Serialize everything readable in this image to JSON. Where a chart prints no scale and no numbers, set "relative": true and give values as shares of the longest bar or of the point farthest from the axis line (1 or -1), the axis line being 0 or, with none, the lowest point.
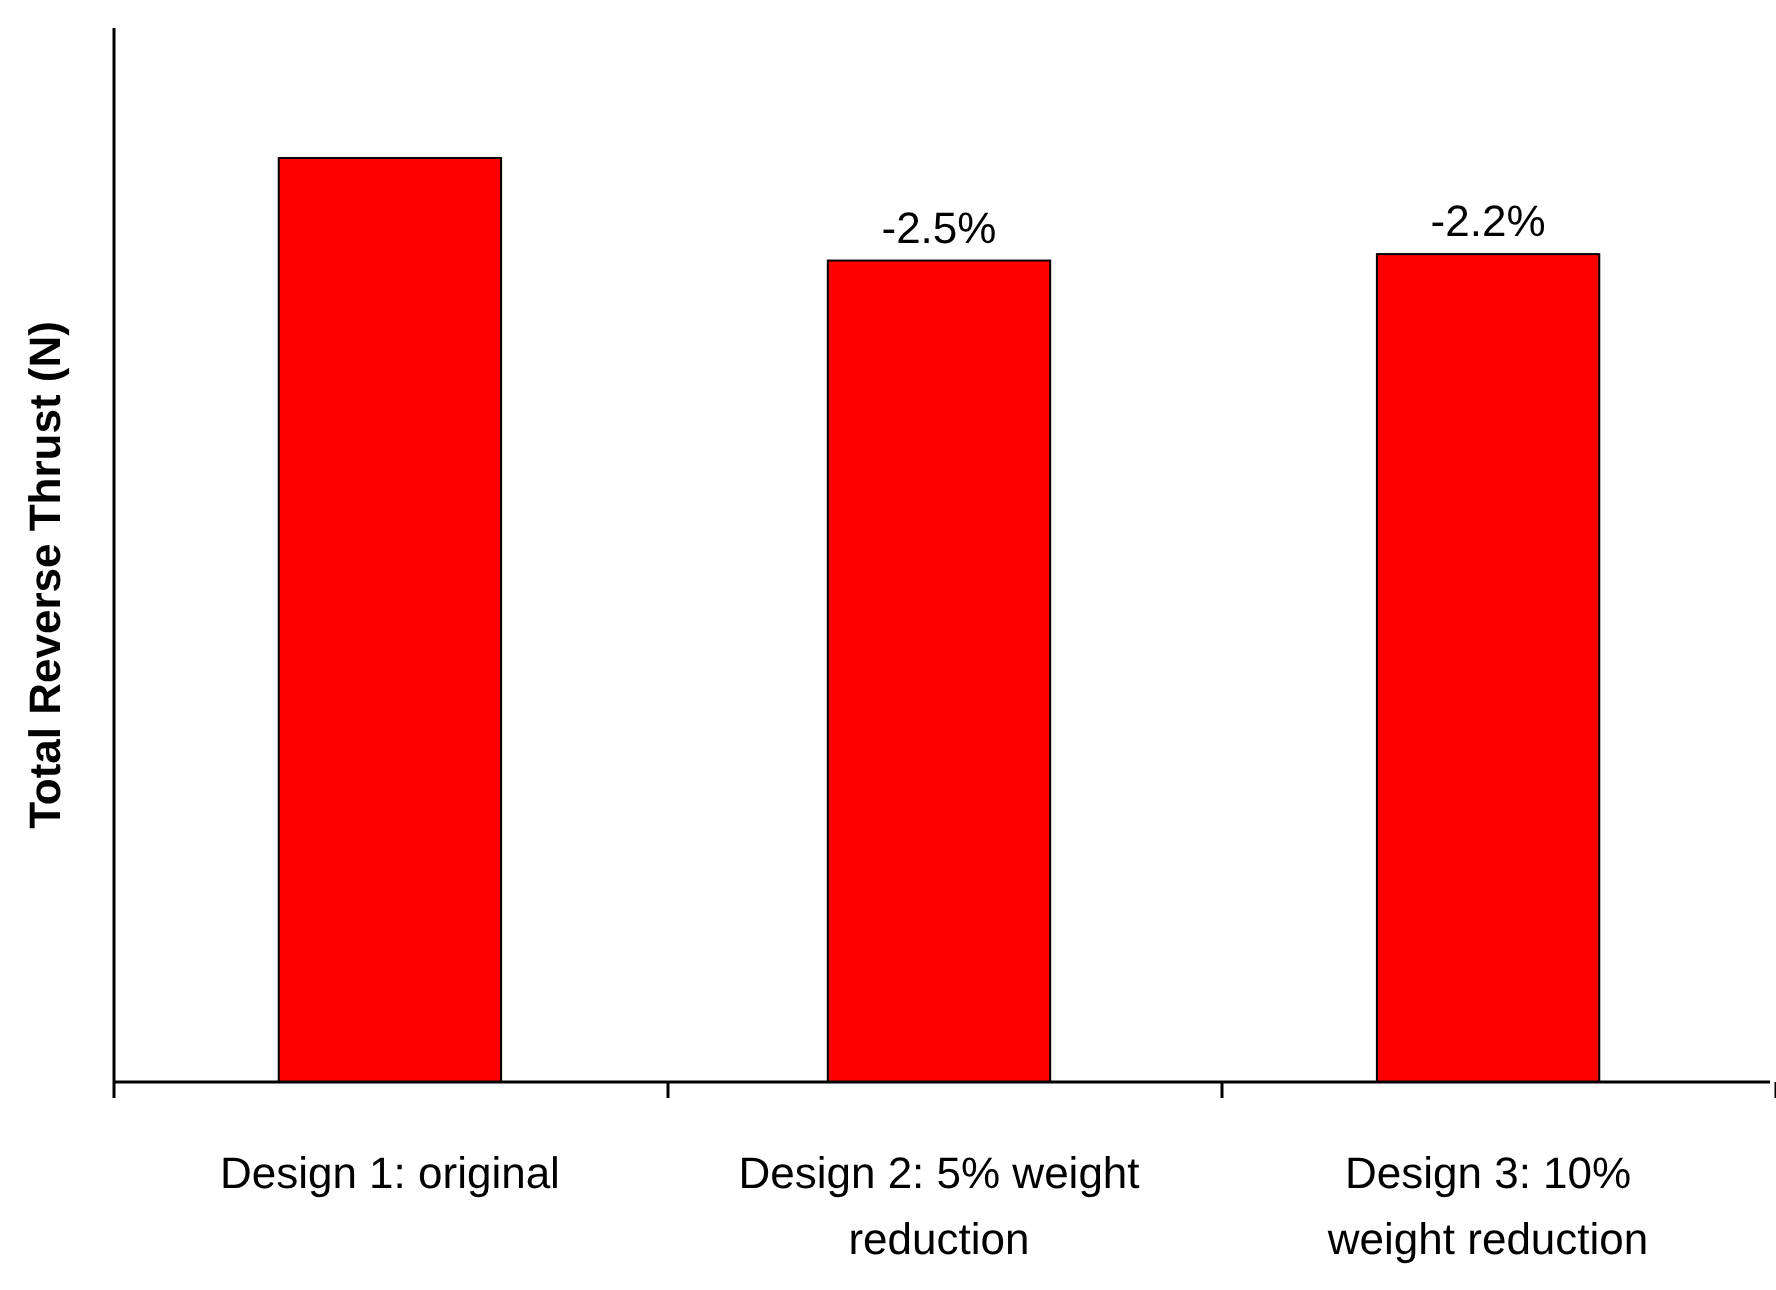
{
  "chart_data": {
    "type": "bar",
    "ylabel": "Total Reverse Thrust (N)",
    "relative": true,
    "categories": [
      "Design 1: original",
      "Design 2: 5% weight reduction",
      "Design 3: 10% weight reduction"
    ],
    "values": [
      1,
      0.889,
      0.896
    ],
    "color": "#ff0000",
    "annotations": [
      {
        "text": "-2.5%",
        "x": "Design 2: 5% weight reduction",
        "y": 0.889
      },
      {
        "text": "-2.2%",
        "x": "Design 3: 10% weight reduction",
        "y": 0.896
      }
    ]
  }
}
